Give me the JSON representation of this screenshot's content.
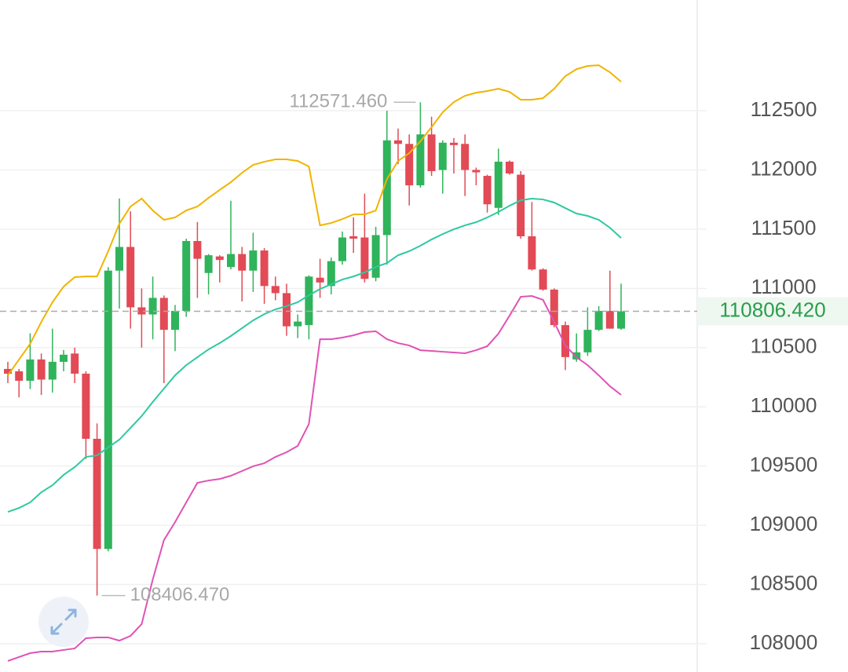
{
  "chart_data": {
    "type": "candlestick",
    "ylim": [
      107761,
      113435
    ],
    "yticks": [
      108000,
      108500,
      109000,
      109500,
      110000,
      110500,
      111000,
      111500,
      112000,
      112500
    ],
    "grid": true,
    "up_color": "#2fb35b",
    "down_color": "#e24a56",
    "open": [
      110320,
      110300,
      110220,
      110400,
      110230,
      110380,
      110450,
      110280,
      109730,
      108800,
      111150,
      111350,
      110840,
      110780,
      110920,
      110650,
      110810,
      111400,
      111130,
      111270,
      111180,
      111290,
      111150,
      111320,
      111020,
      110960,
      110680,
      110690,
      111090,
      111020,
      111230,
      111440,
      111430,
      111090,
      111450,
      112250,
      112220,
      111870,
      112300,
      112000,
      112230,
      112220,
      112000,
      111950,
      111680,
      112070,
      111960,
      111440,
      111160,
      110990,
      110690,
      110400,
      110460,
      110650,
      110810,
      110660
    ],
    "high": [
      110380,
      110320,
      110620,
      110450,
      110660,
      110480,
      110500,
      110300,
      109860,
      111180,
      111760,
      111650,
      111000,
      111100,
      110940,
      110860,
      111420,
      111560,
      111290,
      111280,
      111740,
      111350,
      111470,
      111340,
      111100,
      111040,
      110780,
      111110,
      111250,
      111260,
      111480,
      111600,
      111800,
      111520,
      112500,
      112350,
      112300,
      112571.46,
      112450,
      112250,
      112270,
      112300,
      112020,
      111960,
      112180,
      112080,
      111990,
      111730,
      111170,
      111000,
      110720,
      110620,
      110840,
      110850,
      111150,
      111040
    ],
    "low": [
      110200,
      110080,
      110150,
      110100,
      110120,
      110300,
      110200,
      109560,
      108406.47,
      108780,
      110830,
      110660,
      110500,
      110570,
      110200,
      110470,
      110760,
      110920,
      110950,
      111050,
      111160,
      110890,
      110970,
      110870,
      110900,
      110600,
      110580,
      110570,
      110920,
      110950,
      111200,
      111300,
      111050,
      111060,
      111200,
      112050,
      111700,
      111850,
      111950,
      111800,
      111970,
      111780,
      111870,
      111640,
      111620,
      111960,
      111420,
      111150,
      110980,
      110670,
      110310,
      110380,
      110430,
      110640,
      110660,
      110650
    ],
    "close": [
      110280,
      110220,
      110400,
      110230,
      110380,
      110440,
      110280,
      109730,
      108800,
      111150,
      111350,
      110840,
      110780,
      110920,
      110650,
      110810,
      111400,
      111250,
      111280,
      111240,
      111290,
      111150,
      111320,
      111020,
      110960,
      110680,
      110720,
      111100,
      111050,
      111230,
      111430,
      111420,
      111080,
      111450,
      112250,
      112220,
      111870,
      112300,
      111990,
      112230,
      112210,
      112000,
      111980,
      111710,
      112070,
      111970,
      111440,
      111160,
      110990,
      110690,
      110420,
      110460,
      110650,
      110810,
      110660,
      110806.42
    ],
    "series": [
      {
        "color": "#f0b400",
        "values": [
          110266,
          110399,
          110532,
          110717,
          110883,
          111015,
          111095,
          111101,
          111101,
          111314,
          111546,
          111691,
          111758,
          111658,
          111579,
          111599,
          111658,
          111691,
          111764,
          111831,
          111897,
          111976,
          112043,
          112069,
          112089,
          112089,
          112076,
          112029,
          111532,
          111552,
          111585,
          111625,
          111625,
          111658,
          111923,
          112076,
          112142,
          112242,
          112361,
          112487,
          112573,
          112626,
          112652,
          112666,
          112686,
          112659,
          112593,
          112593,
          112606,
          112686,
          112792,
          112851,
          112878,
          112884,
          112825,
          112745
        ]
      },
      {
        "color": "#2ec9a0",
        "values": [
          109113,
          109146,
          109193,
          109279,
          109338,
          109425,
          109491,
          109577,
          109590,
          109657,
          109723,
          109822,
          109922,
          110041,
          110154,
          110266,
          110352,
          110419,
          110485,
          110538,
          110598,
          110664,
          110730,
          110783,
          110823,
          110850,
          110883,
          110942,
          110995,
          111035,
          111075,
          111101,
          111135,
          111181,
          111214,
          111280,
          111314,
          111360,
          111413,
          111459,
          111499,
          111532,
          111559,
          111599,
          111645,
          111698,
          111744,
          111758,
          111751,
          111725,
          111678,
          111632,
          111612,
          111579,
          111512,
          111426
        ]
      },
      {
        "color": "#e052b5",
        "values": [
          107854,
          107887,
          107920,
          107933,
          107933,
          107947,
          107960,
          108046,
          108053,
          108053,
          108026,
          108066,
          108165,
          108543,
          108875,
          109027,
          109193,
          109358,
          109378,
          109391,
          109418,
          109458,
          109498,
          109524,
          109577,
          109617,
          109670,
          109855,
          110571,
          110571,
          110585,
          110604,
          110631,
          110638,
          110571,
          110538,
          110518,
          110478,
          110472,
          110465,
          110459,
          110452,
          110478,
          110512,
          110618,
          110770,
          110929,
          110936,
          110903,
          110717,
          110518,
          110419,
          110352,
          110266,
          110174,
          110101
        ]
      }
    ],
    "max_label": {
      "value": 112571.46,
      "label": "112571.460"
    },
    "min_label": {
      "value": 108406.47,
      "label": "108406.470"
    },
    "current_price": {
      "value": 110806.42,
      "label": "110806.420"
    }
  }
}
